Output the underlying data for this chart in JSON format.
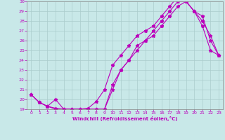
{
  "xlabel": "Windchill (Refroidissement éolien,°C)",
  "background_color": "#c8e8e8",
  "grid_color": "#aacccc",
  "line_color": "#bb00bb",
  "xlim": [
    -0.5,
    23.5
  ],
  "ylim": [
    19,
    30
  ],
  "yticks": [
    19,
    20,
    21,
    22,
    23,
    24,
    25,
    26,
    27,
    28,
    29,
    30
  ],
  "xticks": [
    0,
    1,
    2,
    3,
    4,
    5,
    6,
    7,
    8,
    9,
    10,
    11,
    12,
    13,
    14,
    15,
    16,
    17,
    18,
    19,
    20,
    21,
    22,
    23
  ],
  "line1_x": [
    0,
    1,
    2,
    3,
    4,
    5,
    6,
    7,
    8,
    9,
    10,
    11,
    12,
    13,
    14,
    15,
    16,
    17,
    18,
    19,
    20,
    21,
    22,
    23
  ],
  "line1_y": [
    20.5,
    19.7,
    19.3,
    19.1,
    19.0,
    19.0,
    19.0,
    19.0,
    19.0,
    19.0,
    21.5,
    23.0,
    24.0,
    25.5,
    26.0,
    26.5,
    27.5,
    28.5,
    29.5,
    30.0,
    29.0,
    28.0,
    26.5,
    24.5
  ],
  "line2_x": [
    0,
    1,
    2,
    3,
    4,
    5,
    6,
    7,
    8,
    9,
    10,
    11,
    12,
    13,
    14,
    15,
    16,
    17,
    18,
    19,
    20,
    21,
    22,
    23
  ],
  "line2_y": [
    20.5,
    19.7,
    19.3,
    19.0,
    19.0,
    19.0,
    19.0,
    19.1,
    19.8,
    21.0,
    23.5,
    24.5,
    25.5,
    26.5,
    27.0,
    27.5,
    28.5,
    29.5,
    30.5,
    30.0,
    29.0,
    27.5,
    25.0,
    24.5
  ],
  "line3_x": [
    0,
    1,
    2,
    3,
    4,
    5,
    6,
    7,
    8,
    9,
    10,
    11,
    12,
    13,
    14,
    15,
    16,
    17,
    18,
    19,
    20,
    21,
    22,
    23
  ],
  "line3_y": [
    20.5,
    19.7,
    19.3,
    20.0,
    19.0,
    19.0,
    19.0,
    19.0,
    19.0,
    19.0,
    21.0,
    23.0,
    24.0,
    25.0,
    26.0,
    27.0,
    28.0,
    29.0,
    30.0,
    30.0,
    29.0,
    28.5,
    26.0,
    24.5
  ]
}
